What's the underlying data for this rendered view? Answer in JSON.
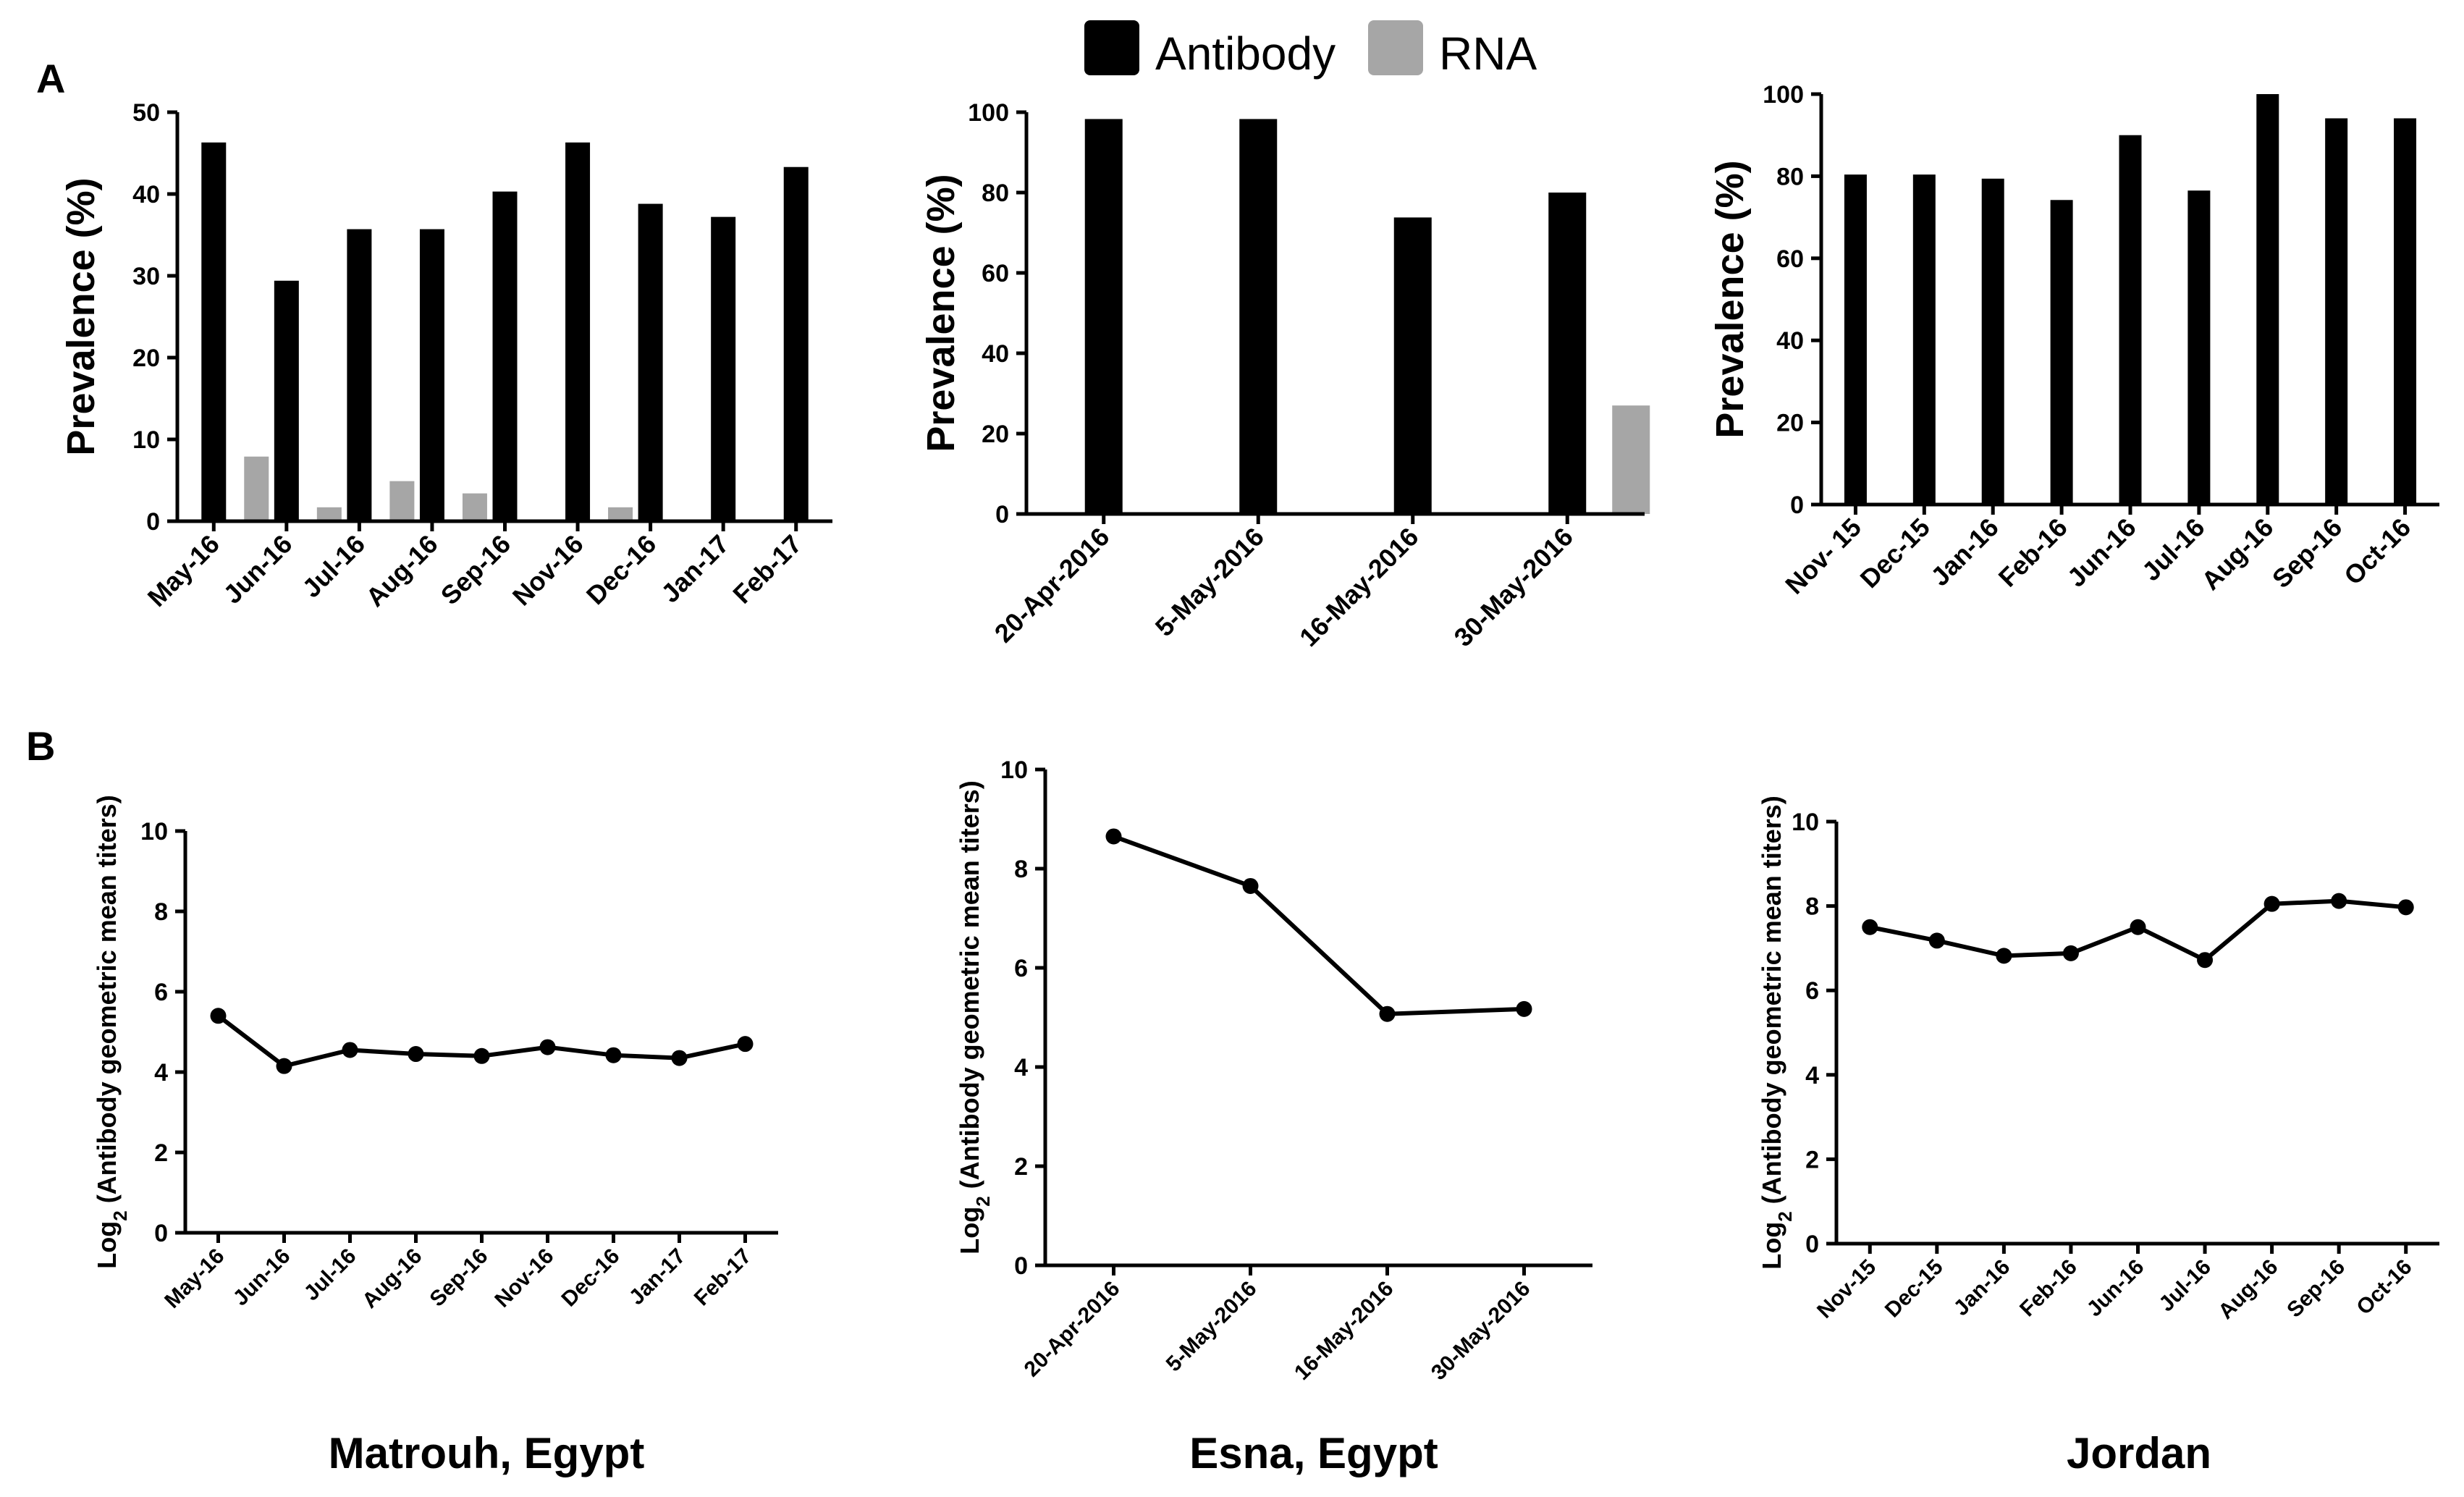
{
  "panel_labels": {
    "a": "A",
    "b": "B"
  },
  "legend": [
    {
      "label": "Antibody",
      "color": "#000000"
    },
    {
      "label": "RNA",
      "color": "#a6a6a6"
    }
  ],
  "regions": [
    "Matrouh, Egypt",
    "Esna, Egypt",
    "Jordan"
  ],
  "chart_data": [
    {
      "id": "A1",
      "type": "bar",
      "region": "Matrouh, Egypt",
      "ylabel": "Prevalence (%)",
      "ylim": [
        0,
        50
      ],
      "yticks": [
        0,
        10,
        20,
        30,
        40,
        50
      ],
      "categories": [
        "May-16",
        "Jun-16",
        "Jul-16",
        "Aug-16",
        "Sep-16",
        "Nov-16",
        "Dec-16",
        "Jan-17",
        "Feb-17"
      ],
      "series": [
        {
          "name": "Antibody",
          "values": [
            46.3,
            29.4,
            35.7,
            35.7,
            40.3,
            46.3,
            38.8,
            37.2,
            43.3
          ]
        },
        {
          "name": "RNA",
          "values": [
            7.9,
            1.7,
            4.9,
            3.4,
            0,
            1.7,
            0,
            0,
            0
          ]
        }
      ]
    },
    {
      "id": "A2",
      "type": "bar",
      "region": "Esna, Egypt",
      "ylabel": "Prevalence (%)",
      "ylim": [
        0,
        100
      ],
      "yticks": [
        0,
        20,
        40,
        60,
        80,
        100
      ],
      "categories": [
        "20-Apr-2016",
        "5-May-2016",
        "16-May-2016",
        "30-May-2016"
      ],
      "series": [
        {
          "name": "Antibody",
          "values": [
            98.3,
            98.3,
            73.8,
            80.0
          ]
        },
        {
          "name": "RNA",
          "values": [
            0,
            0,
            0,
            27.0
          ]
        }
      ]
    },
    {
      "id": "A3",
      "type": "bar",
      "region": "Jordan",
      "ylabel": "Prevalence (%)",
      "ylim": [
        0,
        100
      ],
      "yticks": [
        0,
        20,
        40,
        60,
        80,
        100
      ],
      "categories": [
        "Nov- 15",
        "Dec-15",
        "Jan-16",
        "Feb-16",
        "Jun-16",
        "Jul-16",
        "Aug-16",
        "Sep-16",
        "Oct-16"
      ],
      "series": [
        {
          "name": "Antibody",
          "values": [
            80.4,
            80.4,
            79.4,
            74.2,
            90.0,
            76.5,
            100,
            94.1,
            94.1
          ]
        }
      ]
    },
    {
      "id": "B1",
      "type": "line",
      "region": "Matrouh, Egypt",
      "ylabel_prefix": "Log",
      "ylabel_sub": "2",
      "ylabel_rest": " (Antibody geometric mean titers)",
      "ylim": [
        0,
        10
      ],
      "yticks": [
        0,
        2,
        4,
        6,
        8,
        10
      ],
      "x": [
        "May-16",
        "Jun-16",
        "Jul-16",
        "Aug-16",
        "Sep-16",
        "Nov-16",
        "Dec-16",
        "Jan-17",
        "Feb-17"
      ],
      "series": [
        {
          "name": "Antibody GMT",
          "values": [
            5.4,
            4.15,
            4.55,
            4.45,
            4.4,
            4.62,
            4.42,
            4.35,
            4.7
          ]
        }
      ]
    },
    {
      "id": "B2",
      "type": "line",
      "region": "Esna, Egypt",
      "ylabel_prefix": "Log",
      "ylabel_sub": "2",
      "ylabel_rest": " (Antibody geometric mean titers)",
      "ylim": [
        0,
        10
      ],
      "yticks": [
        0,
        2,
        4,
        6,
        8,
        10
      ],
      "x": [
        "20-Apr-2016",
        "5-May-2016",
        "16-May-2016",
        "30-May-2016"
      ],
      "series": [
        {
          "name": "Antibody GMT",
          "values": [
            8.65,
            7.65,
            5.07,
            5.17
          ]
        }
      ]
    },
    {
      "id": "B3",
      "type": "line",
      "region": "Jordan",
      "ylabel_prefix": "Log",
      "ylabel_sub": "2",
      "ylabel_rest": " (Antibody geometric mean titers)",
      "ylim": [
        0,
        10
      ],
      "yticks": [
        0,
        2,
        4,
        6,
        8,
        10
      ],
      "x": [
        "Nov-15",
        "Dec-15",
        "Jan-16",
        "Feb-16",
        "Jun-16",
        "Jul-16",
        "Aug-16",
        "Sep-16",
        "Oct-16"
      ],
      "series": [
        {
          "name": "Antibody GMT",
          "values": [
            7.5,
            7.18,
            6.82,
            6.88,
            7.5,
            6.72,
            8.05,
            8.12,
            7.97
          ]
        }
      ]
    }
  ]
}
